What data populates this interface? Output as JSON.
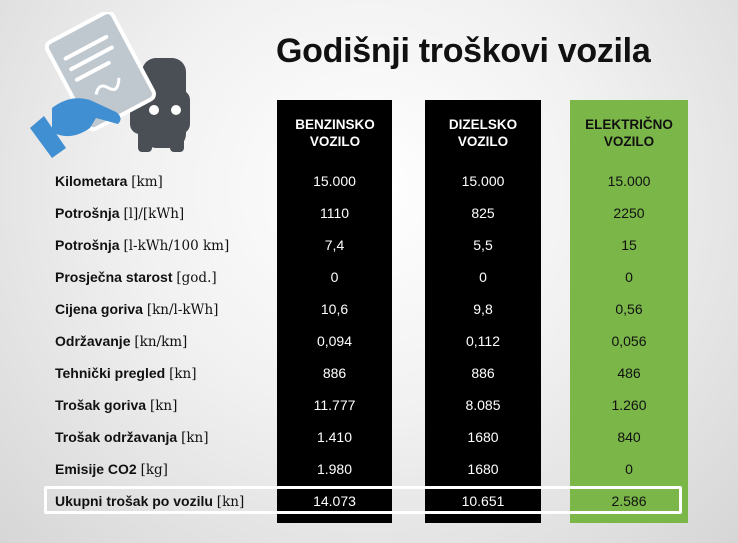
{
  "title": "Godišnji troškovi vozila",
  "columns": [
    {
      "line1": "BENZINSKO",
      "line2": "VOZILO"
    },
    {
      "line1": "DIZELSKO",
      "line2": "VOZILO"
    },
    {
      "line1": "ELEKTRIČNO",
      "line2": "VOZILO"
    }
  ],
  "rows": [
    {
      "name": "Kilometara",
      "unit": "[km]",
      "values": [
        "15.000",
        "15.000",
        "15.000"
      ]
    },
    {
      "name": "Potrošnja",
      "unit": "[l]/[kWh]",
      "values": [
        "1110",
        "825",
        "2250"
      ]
    },
    {
      "name": "Potrošnja",
      "unit": "[l-kWh/100 km]",
      "values": [
        "7,4",
        "5,5",
        "15"
      ]
    },
    {
      "name": "Prosječna starost",
      "unit": "[god.]",
      "values": [
        "0",
        "0",
        "0"
      ]
    },
    {
      "name": "Cijena goriva",
      "unit": "[kn/l-kWh]",
      "values": [
        "10,6",
        "9,8",
        "0,56"
      ]
    },
    {
      "name": "Održavanje",
      "unit": "[kn/km]",
      "values": [
        "0,094",
        "0,112",
        "0,056"
      ]
    },
    {
      "name": "Tehnički pregled",
      "unit": "[kn]",
      "values": [
        "886",
        "886",
        "486"
      ]
    },
    {
      "name": "Trošak goriva",
      "unit": "[kn]",
      "values": [
        "11.777",
        "8.085",
        "1.260"
      ]
    },
    {
      "name": "Trošak održavanja",
      "unit": "[kn]",
      "values": [
        "1.410",
        "1680",
        "840"
      ]
    },
    {
      "name": "Emisije CO2",
      "unit": "[kg]",
      "values": [
        "1.980",
        "1680",
        "0"
      ]
    },
    {
      "name": "Ukupni trošak po vozilu",
      "unit": "[kn]",
      "values": [
        "14.073",
        "10.651",
        "2.586"
      ]
    }
  ],
  "colors": {
    "electric": "#7ab648",
    "dark": "#000000",
    "icon_blue": "#3f8fd2",
    "icon_gray": "#bfc7cf",
    "icon_dark": "#4a4f55"
  },
  "icon": "car-document-icon"
}
